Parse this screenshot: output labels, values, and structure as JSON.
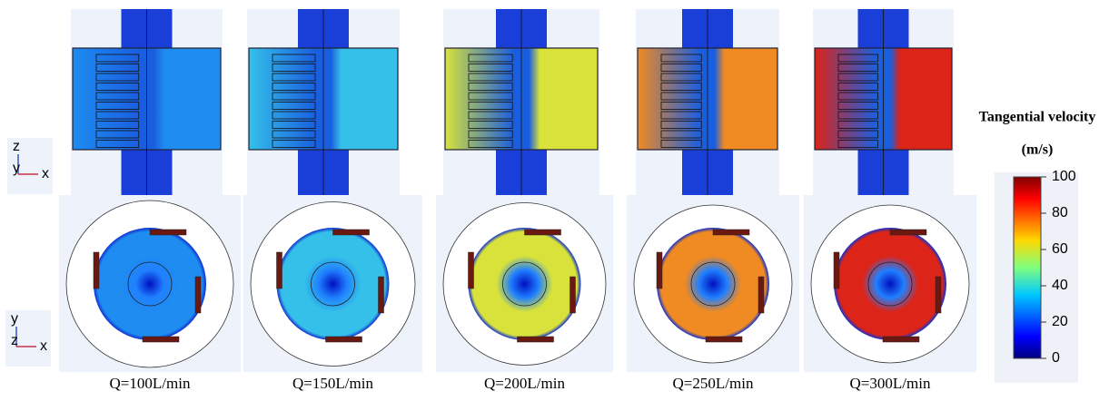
{
  "figure": {
    "colorbar": {
      "title": "Tangential velocity",
      "unit": "(m/s)",
      "lim": [
        0,
        100
      ],
      "ticks": [
        0,
        20,
        40,
        60,
        80,
        100
      ]
    },
    "panels": [
      {
        "label": "Q=100L/min",
        "color": "#1e8cf0"
      },
      {
        "label": "Q=150L/min",
        "color": "#34c0e8"
      },
      {
        "label": "Q=200L/min",
        "color": "#d8e23a"
      },
      {
        "label": "Q=250L/min",
        "color": "#f08a22"
      },
      {
        "label": "Q=300L/min",
        "color": "#dc2418"
      }
    ],
    "axes_icons": {
      "top": [
        "z",
        "y",
        "x"
      ],
      "bottom": [
        "y",
        "z",
        "x"
      ]
    }
  }
}
